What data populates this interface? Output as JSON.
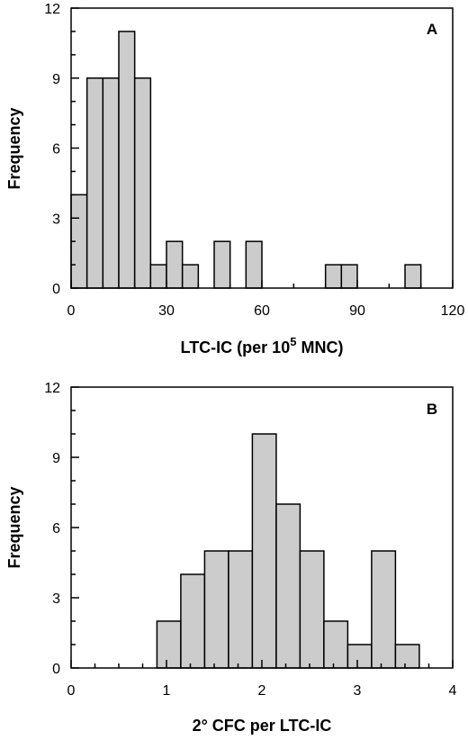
{
  "chart_data": [
    {
      "type": "bar",
      "panel_label": "A",
      "ylabel": "Frequency",
      "xlabel_prefix": "LTC-IC (per 10",
      "xlabel_superscript": "5",
      "xlabel_suffix": " MNC)",
      "xlim": [
        0,
        120
      ],
      "ylim": [
        0,
        12
      ],
      "xticks": [
        0,
        30,
        60,
        90,
        120
      ],
      "xminor_step": 10,
      "yticks": [
        0,
        3,
        6,
        9,
        12
      ],
      "yminor_step": 1,
      "grid": false,
      "bin_width": 5,
      "bins": [
        {
          "x0": 0,
          "value": 4
        },
        {
          "x0": 5,
          "value": 9
        },
        {
          "x0": 10,
          "value": 9
        },
        {
          "x0": 15,
          "value": 11
        },
        {
          "x0": 20,
          "value": 9
        },
        {
          "x0": 25,
          "value": 1
        },
        {
          "x0": 30,
          "value": 2
        },
        {
          "x0": 35,
          "value": 1
        },
        {
          "x0": 45,
          "value": 2
        },
        {
          "x0": 55,
          "value": 2
        },
        {
          "x0": 80,
          "value": 1
        },
        {
          "x0": 85,
          "value": 1
        },
        {
          "x0": 105,
          "value": 1
        }
      ],
      "colors": {
        "bar": "#cccccc",
        "edge": "#000000"
      }
    },
    {
      "type": "bar",
      "panel_label": "B",
      "ylabel": "Frequency",
      "xlabel": "2° CFC per LTC-IC",
      "xlim": [
        0,
        4
      ],
      "ylim": [
        0,
        12
      ],
      "xticks": [
        0,
        1,
        2,
        3,
        4
      ],
      "xminor_step": 0.25,
      "yticks": [
        0,
        3,
        6,
        9,
        12
      ],
      "yminor_step": 1,
      "grid": false,
      "bin_width": 0.25,
      "bins": [
        {
          "x0": 0.9,
          "value": 2
        },
        {
          "x0": 1.15,
          "value": 4
        },
        {
          "x0": 1.4,
          "value": 5
        },
        {
          "x0": 1.65,
          "value": 5
        },
        {
          "x0": 1.9,
          "value": 10
        },
        {
          "x0": 2.15,
          "value": 7
        },
        {
          "x0": 2.4,
          "value": 5
        },
        {
          "x0": 2.65,
          "value": 2
        },
        {
          "x0": 2.9,
          "value": 1
        },
        {
          "x0": 3.15,
          "value": 5
        },
        {
          "x0": 3.4,
          "value": 1
        }
      ],
      "colors": {
        "bar": "#cccccc",
        "edge": "#000000"
      }
    }
  ]
}
